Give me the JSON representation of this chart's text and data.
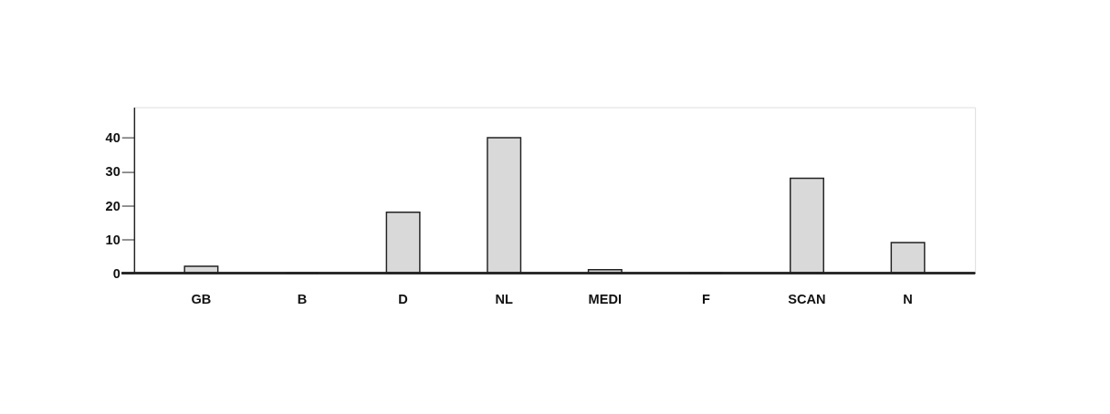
{
  "chart_data": {
    "type": "bar",
    "categories": [
      "GB",
      "B",
      "D",
      "NL",
      "MEDI",
      "F",
      "SCAN",
      "N"
    ],
    "values": [
      2,
      0,
      18,
      40,
      1,
      0,
      28,
      9
    ],
    "color": "#d9d9d9",
    "ylim": [
      0,
      49
    ],
    "yticks": [
      0,
      10,
      20,
      30,
      40
    ],
    "grid": false
  }
}
